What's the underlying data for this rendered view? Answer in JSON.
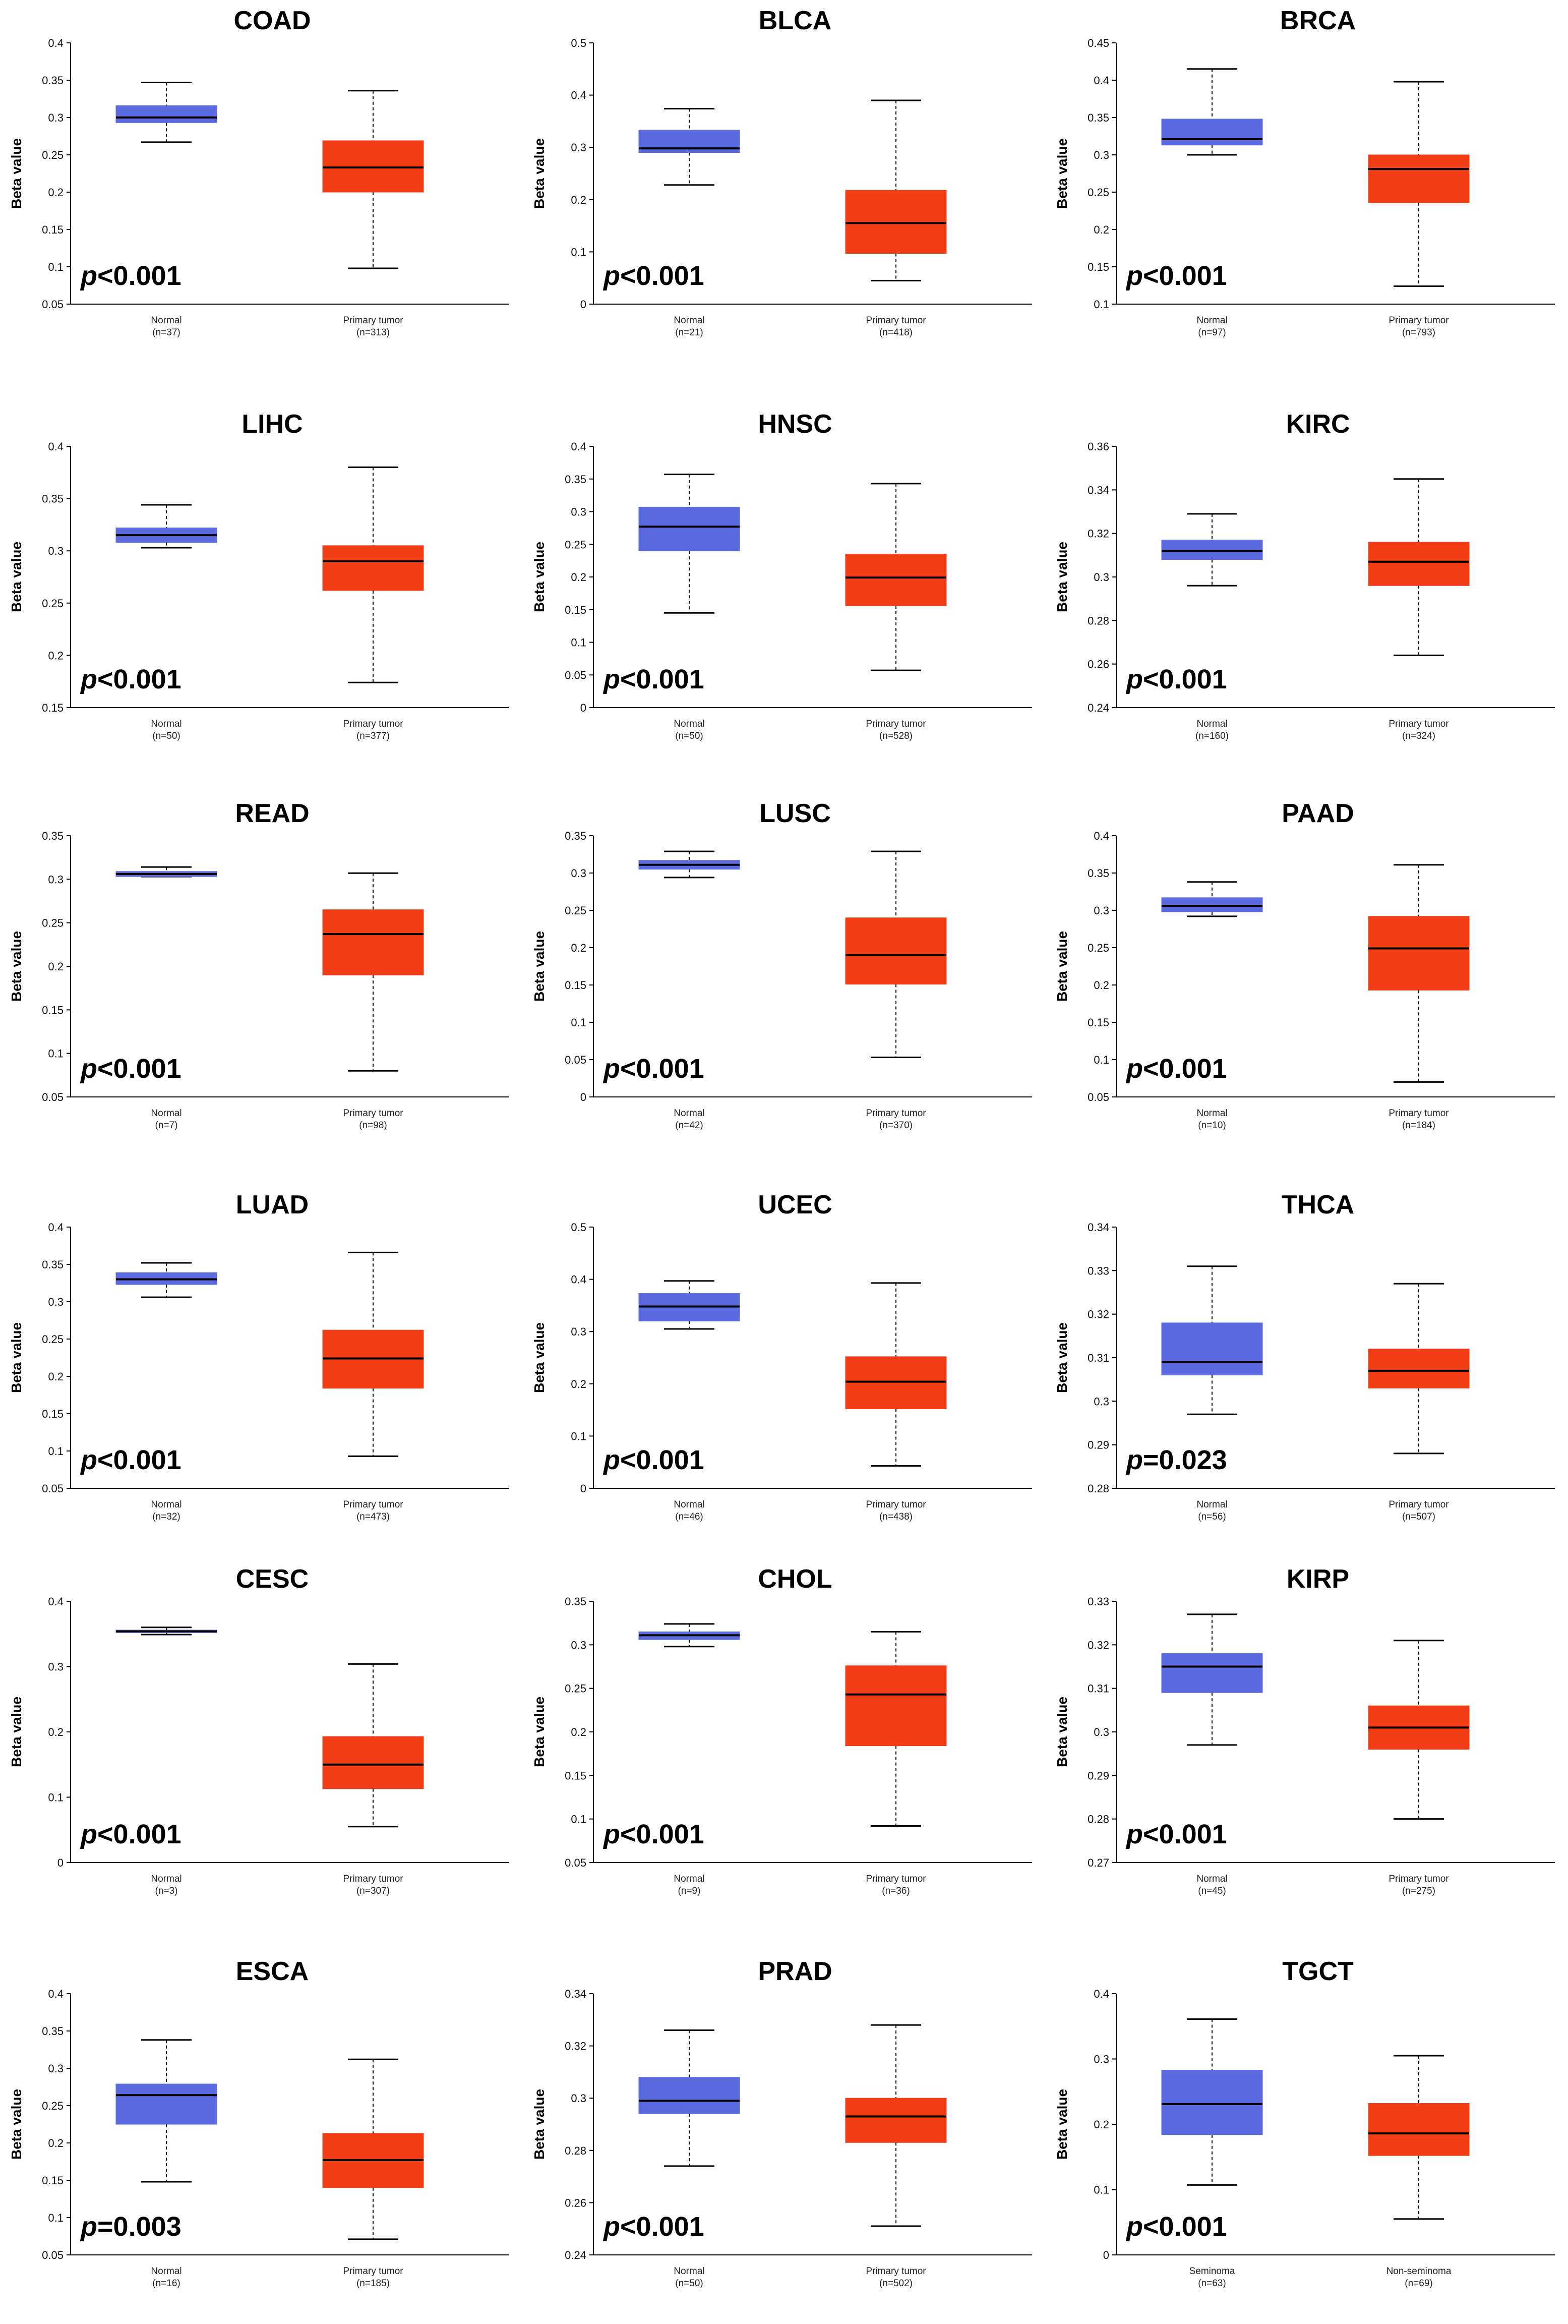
{
  "colors": {
    "normal": "#5b6bdf",
    "tumor": "#f23d16",
    "median": "#000000",
    "axis": "#000000"
  },
  "chart_data": [
    {
      "type": "box",
      "title": "COAD",
      "ylabel": "Beta value",
      "ylim": [
        0.05,
        0.4
      ],
      "ticks": [
        "0.05",
        "0.1",
        "0.15",
        "0.2",
        "0.25",
        "0.3",
        "0.35",
        "0.4"
      ],
      "p_prefix": "p",
      "p_rest": "<0.001",
      "groups": [
        {
          "label": "Normal",
          "n": "(n=37)",
          "min": 0.267,
          "q1": 0.293,
          "median": 0.3,
          "q3": 0.316,
          "max": 0.347,
          "color": "normal"
        },
        {
          "label": "Primary tumor",
          "n": "(n=313)",
          "min": 0.098,
          "q1": 0.2,
          "median": 0.233,
          "q3": 0.269,
          "max": 0.336,
          "color": "tumor"
        }
      ]
    },
    {
      "type": "box",
      "title": "BLCA",
      "ylabel": "Beta value",
      "ylim": [
        0,
        0.5
      ],
      "ticks": [
        "0",
        "0.1",
        "0.2",
        "0.3",
        "0.4",
        "0.5"
      ],
      "p_prefix": "p",
      "p_rest": "<0.001",
      "groups": [
        {
          "label": "Normal",
          "n": "(n=21)",
          "min": 0.228,
          "q1": 0.29,
          "median": 0.298,
          "q3": 0.333,
          "max": 0.374,
          "color": "normal"
        },
        {
          "label": "Primary tumor",
          "n": "(n=418)",
          "min": 0.045,
          "q1": 0.097,
          "median": 0.155,
          "q3": 0.218,
          "max": 0.39,
          "color": "tumor"
        }
      ]
    },
    {
      "type": "box",
      "title": "BRCA",
      "ylabel": "Beta value",
      "ylim": [
        0.1,
        0.45
      ],
      "ticks": [
        "0.1",
        "0.15",
        "0.2",
        "0.25",
        "0.3",
        "0.35",
        "0.4",
        "0.45"
      ],
      "p_prefix": "p",
      "p_rest": "<0.001",
      "groups": [
        {
          "label": "Normal",
          "n": "(n=97)",
          "min": 0.3,
          "q1": 0.313,
          "median": 0.321,
          "q3": 0.348,
          "max": 0.415,
          "color": "normal"
        },
        {
          "label": "Primary tumor",
          "n": "(n=793)",
          "min": 0.124,
          "q1": 0.236,
          "median": 0.281,
          "q3": 0.3,
          "max": 0.398,
          "color": "tumor"
        }
      ]
    },
    {
      "type": "box",
      "title": "LIHC",
      "ylabel": "Beta value",
      "ylim": [
        0.15,
        0.4
      ],
      "ticks": [
        "0.15",
        "0.2",
        "0.25",
        "0.3",
        "0.35",
        "0.4"
      ],
      "p_prefix": "p",
      "p_rest": "<0.001",
      "groups": [
        {
          "label": "Normal",
          "n": "(n=50)",
          "min": 0.303,
          "q1": 0.308,
          "median": 0.315,
          "q3": 0.322,
          "max": 0.344,
          "color": "normal"
        },
        {
          "label": "Primary tumor",
          "n": "(n=377)",
          "min": 0.174,
          "q1": 0.262,
          "median": 0.29,
          "q3": 0.305,
          "max": 0.38,
          "color": "tumor"
        }
      ]
    },
    {
      "type": "box",
      "title": "HNSC",
      "ylabel": "Beta value",
      "ylim": [
        0,
        0.4
      ],
      "ticks": [
        "0",
        "0.05",
        "0.1",
        "0.15",
        "0.2",
        "0.25",
        "0.3",
        "0.35",
        "0.4"
      ],
      "p_prefix": "p",
      "p_rest": "<0.001",
      "groups": [
        {
          "label": "Normal",
          "n": "(n=50)",
          "min": 0.145,
          "q1": 0.24,
          "median": 0.277,
          "q3": 0.307,
          "max": 0.357,
          "color": "normal"
        },
        {
          "label": "Primary tumor",
          "n": "(n=528)",
          "min": 0.057,
          "q1": 0.156,
          "median": 0.199,
          "q3": 0.235,
          "max": 0.343,
          "color": "tumor"
        }
      ]
    },
    {
      "type": "box",
      "title": "KIRC",
      "ylabel": "Beta value",
      "ylim": [
        0.24,
        0.36
      ],
      "ticks": [
        "0.24",
        "0.26",
        "0.28",
        "0.3",
        "0.32",
        "0.34",
        "0.36"
      ],
      "p_prefix": "p",
      "p_rest": "<0.001",
      "groups": [
        {
          "label": "Normal",
          "n": "(n=160)",
          "min": 0.296,
          "q1": 0.308,
          "median": 0.312,
          "q3": 0.317,
          "max": 0.329,
          "color": "normal"
        },
        {
          "label": "Primary tumor",
          "n": "(n=324)",
          "min": 0.264,
          "q1": 0.296,
          "median": 0.307,
          "q3": 0.316,
          "max": 0.345,
          "color": "tumor"
        }
      ]
    },
    {
      "type": "box",
      "title": "READ",
      "ylabel": "Beta value",
      "ylim": [
        0.05,
        0.35
      ],
      "ticks": [
        "0.05",
        "0.1",
        "0.15",
        "0.2",
        "0.25",
        "0.3",
        "0.35"
      ],
      "p_prefix": "p",
      "p_rest": "<0.001",
      "groups": [
        {
          "label": "Normal",
          "n": "(n=7)",
          "min": 0.303,
          "q1": 0.303,
          "median": 0.306,
          "q3": 0.309,
          "max": 0.314,
          "color": "normal"
        },
        {
          "label": "Primary tumor",
          "n": "(n=98)",
          "min": 0.08,
          "q1": 0.19,
          "median": 0.237,
          "q3": 0.265,
          "max": 0.307,
          "color": "tumor"
        }
      ]
    },
    {
      "type": "box",
      "title": "LUSC",
      "ylabel": "Beta value",
      "ylim": [
        0,
        0.35
      ],
      "ticks": [
        "0",
        "0.05",
        "0.1",
        "0.15",
        "0.2",
        "0.25",
        "0.3",
        "0.35"
      ],
      "p_prefix": "p",
      "p_rest": "<0.001",
      "groups": [
        {
          "label": "Normal",
          "n": "(n=42)",
          "min": 0.294,
          "q1": 0.305,
          "median": 0.311,
          "q3": 0.317,
          "max": 0.329,
          "color": "normal"
        },
        {
          "label": "Primary tumor",
          "n": "(n=370)",
          "min": 0.053,
          "q1": 0.151,
          "median": 0.19,
          "q3": 0.24,
          "max": 0.329,
          "color": "tumor"
        }
      ]
    },
    {
      "type": "box",
      "title": "PAAD",
      "ylabel": "Beta value",
      "ylim": [
        0.05,
        0.4
      ],
      "ticks": [
        "0.05",
        "0.1",
        "0.15",
        "0.2",
        "0.25",
        "0.3",
        "0.35",
        "0.4"
      ],
      "p_prefix": "p",
      "p_rest": "<0.001",
      "groups": [
        {
          "label": "Normal",
          "n": "(n=10)",
          "min": 0.292,
          "q1": 0.298,
          "median": 0.306,
          "q3": 0.317,
          "max": 0.338,
          "color": "normal"
        },
        {
          "label": "Primary tumor",
          "n": "(n=184)",
          "min": 0.07,
          "q1": 0.193,
          "median": 0.249,
          "q3": 0.292,
          "max": 0.361,
          "color": "tumor"
        }
      ]
    },
    {
      "type": "box",
      "title": "LUAD",
      "ylabel": "Beta value",
      "ylim": [
        0.05,
        0.4
      ],
      "ticks": [
        "0.05",
        "0.1",
        "0.15",
        "0.2",
        "0.25",
        "0.3",
        "0.35",
        "0.4"
      ],
      "p_prefix": "p",
      "p_rest": "<0.001",
      "groups": [
        {
          "label": "Normal",
          "n": "(n=32)",
          "min": 0.306,
          "q1": 0.323,
          "median": 0.33,
          "q3": 0.339,
          "max": 0.352,
          "color": "normal"
        },
        {
          "label": "Primary tumor",
          "n": "(n=473)",
          "min": 0.093,
          "q1": 0.184,
          "median": 0.224,
          "q3": 0.262,
          "max": 0.366,
          "color": "tumor"
        }
      ]
    },
    {
      "type": "box",
      "title": "UCEC",
      "ylabel": "Beta value",
      "ylim": [
        0,
        0.5
      ],
      "ticks": [
        "0",
        "0.1",
        "0.2",
        "0.3",
        "0.4",
        "0.5"
      ],
      "p_prefix": "p",
      "p_rest": "<0.001",
      "groups": [
        {
          "label": "Normal",
          "n": "(n=46)",
          "min": 0.305,
          "q1": 0.32,
          "median": 0.348,
          "q3": 0.373,
          "max": 0.397,
          "color": "normal"
        },
        {
          "label": "Primary tumor",
          "n": "(n=438)",
          "min": 0.043,
          "q1": 0.152,
          "median": 0.204,
          "q3": 0.252,
          "max": 0.393,
          "color": "tumor"
        }
      ]
    },
    {
      "type": "box",
      "title": "THCA",
      "ylabel": "Beta value",
      "ylim": [
        0.28,
        0.34
      ],
      "ticks": [
        "0.28",
        "0.29",
        "0.3",
        "0.31",
        "0.32",
        "0.33",
        "0.34"
      ],
      "p_prefix": "p",
      "p_rest": "=0.023",
      "groups": [
        {
          "label": "Normal",
          "n": "(n=56)",
          "min": 0.297,
          "q1": 0.306,
          "median": 0.309,
          "q3": 0.318,
          "max": 0.331,
          "color": "normal"
        },
        {
          "label": "Primary tumor",
          "n": "(n=507)",
          "min": 0.288,
          "q1": 0.303,
          "median": 0.307,
          "q3": 0.312,
          "max": 0.327,
          "color": "tumor"
        }
      ]
    },
    {
      "type": "box",
      "title": "CESC",
      "ylabel": "Beta value",
      "ylim": [
        0,
        0.4
      ],
      "ticks": [
        "0",
        "0.1",
        "0.2",
        "0.3",
        "0.4"
      ],
      "p_prefix": "p",
      "p_rest": "<0.001",
      "groups": [
        {
          "label": "Normal",
          "n": "(n=3)",
          "min": 0.349,
          "q1": 0.352,
          "median": 0.354,
          "q3": 0.356,
          "max": 0.36,
          "color": "normal"
        },
        {
          "label": "Primary tumor",
          "n": "(n=307)",
          "min": 0.055,
          "q1": 0.113,
          "median": 0.15,
          "q3": 0.193,
          "max": 0.304,
          "color": "tumor"
        }
      ]
    },
    {
      "type": "box",
      "title": "CHOL",
      "ylabel": "Beta value",
      "ylim": [
        0.05,
        0.35
      ],
      "ticks": [
        "0.05",
        "0.1",
        "0.15",
        "0.2",
        "0.25",
        "0.3",
        "0.35"
      ],
      "p_prefix": "p",
      "p_rest": "<0.001",
      "groups": [
        {
          "label": "Normal",
          "n": "(n=9)",
          "min": 0.298,
          "q1": 0.306,
          "median": 0.311,
          "q3": 0.315,
          "max": 0.324,
          "color": "normal"
        },
        {
          "label": "Primary tumor",
          "n": "(n=36)",
          "min": 0.092,
          "q1": 0.184,
          "median": 0.243,
          "q3": 0.276,
          "max": 0.315,
          "color": "tumor"
        }
      ]
    },
    {
      "type": "box",
      "title": "KIRP",
      "ylabel": "Beta value",
      "ylim": [
        0.27,
        0.33
      ],
      "ticks": [
        "0.27",
        "0.28",
        "0.29",
        "0.3",
        "0.31",
        "0.32",
        "0.33"
      ],
      "p_prefix": "p",
      "p_rest": "<0.001",
      "groups": [
        {
          "label": "Normal",
          "n": "(n=45)",
          "min": 0.297,
          "q1": 0.309,
          "median": 0.315,
          "q3": 0.318,
          "max": 0.327,
          "color": "normal"
        },
        {
          "label": "Primary tumor",
          "n": "(n=275)",
          "min": 0.28,
          "q1": 0.296,
          "median": 0.301,
          "q3": 0.306,
          "max": 0.321,
          "color": "tumor"
        }
      ]
    },
    {
      "type": "box",
      "title": "ESCA",
      "ylabel": "Beta value",
      "ylim": [
        0.05,
        0.4
      ],
      "ticks": [
        "0.05",
        "0.1",
        "0.15",
        "0.2",
        "0.25",
        "0.3",
        "0.35",
        "0.4"
      ],
      "p_prefix": "p",
      "p_rest": "=0.003",
      "groups": [
        {
          "label": "Normal",
          "n": "(n=16)",
          "min": 0.148,
          "q1": 0.225,
          "median": 0.264,
          "q3": 0.279,
          "max": 0.338,
          "color": "normal"
        },
        {
          "label": "Primary tumor",
          "n": "(n=185)",
          "min": 0.071,
          "q1": 0.14,
          "median": 0.177,
          "q3": 0.213,
          "max": 0.312,
          "color": "tumor"
        }
      ]
    },
    {
      "type": "box",
      "title": "PRAD",
      "ylabel": "Beta value",
      "ylim": [
        0.24,
        0.34
      ],
      "ticks": [
        "0.24",
        "0.26",
        "0.28",
        "0.3",
        "0.32",
        "0.34"
      ],
      "p_prefix": "p",
      "p_rest": "<0.001",
      "groups": [
        {
          "label": "Normal",
          "n": "(n=50)",
          "min": 0.274,
          "q1": 0.294,
          "median": 0.299,
          "q3": 0.308,
          "max": 0.326,
          "color": "normal"
        },
        {
          "label": "Primary tumor",
          "n": "(n=502)",
          "min": 0.251,
          "q1": 0.283,
          "median": 0.293,
          "q3": 0.3,
          "max": 0.328,
          "color": "tumor"
        }
      ]
    },
    {
      "type": "box",
      "title": "TGCT",
      "ylabel": "Beta value",
      "ylim": [
        0,
        0.4
      ],
      "ticks": [
        "0",
        "0.1",
        "0.2",
        "0.3",
        "0.4"
      ],
      "p_prefix": "p",
      "p_rest": "<0.001",
      "groups": [
        {
          "label": "Seminoma",
          "n": "(n=63)",
          "min": 0.107,
          "q1": 0.184,
          "median": 0.231,
          "q3": 0.283,
          "max": 0.361,
          "color": "normal"
        },
        {
          "label": "Non-seminoma",
          "n": "(n=69)",
          "min": 0.055,
          "q1": 0.152,
          "median": 0.186,
          "q3": 0.232,
          "max": 0.305,
          "color": "tumor"
        }
      ]
    }
  ]
}
